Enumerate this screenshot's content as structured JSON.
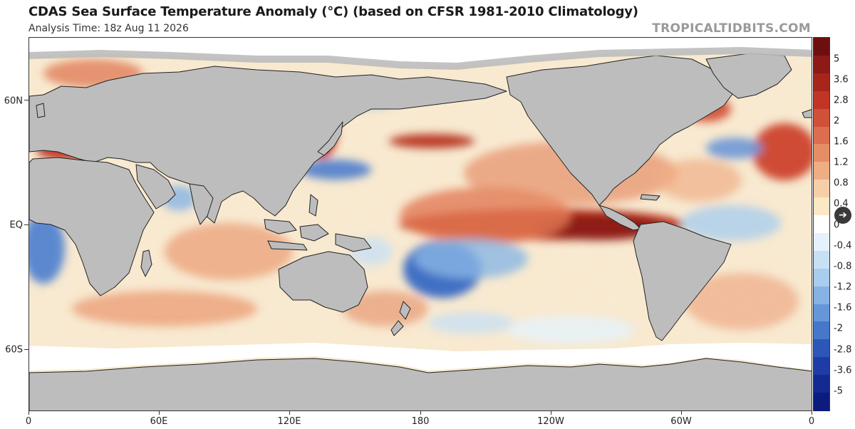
{
  "header": {
    "title": "CDAS Sea Surface Temperature Anomaly (°C) (based on CFSR 1981-2010 Climatology)",
    "analysis_time": "Analysis Time: 18z Aug 11 2026",
    "brand": "TROPICALTIDBITS.COM"
  },
  "map": {
    "lat_labels": [
      "60N",
      "EQ",
      "60S"
    ],
    "lon_labels": [
      "0",
      "60E",
      "120E",
      "180",
      "120W",
      "60W",
      "0"
    ],
    "land_color": "#bdbdbd",
    "ice_color": "#ffffff",
    "ocean_neutral": "#fbf3e4"
  },
  "colorbar": {
    "labels": [
      "5",
      "3.6",
      "2.8",
      "2",
      "1.6",
      "1.2",
      "0.8",
      "0.4",
      "0",
      "-0.4",
      "-0.8",
      "-1.2",
      "-1.6",
      "-2",
      "-2.8",
      "-3.6",
      "-5"
    ],
    "colors": [
      "#6e0f0f",
      "#8c1a16",
      "#a8251c",
      "#c03525",
      "#d1503a",
      "#dc6d4f",
      "#e68d66",
      "#efad84",
      "#f6cfa8",
      "#fbe8c4",
      "#ffffff",
      "#e6f2fb",
      "#c8e0f4",
      "#a9cdee",
      "#86b3e4",
      "#6596d8",
      "#4677ca",
      "#2c56b8",
      "#1d3ca6",
      "#122a92",
      "#0b1c7e"
    ]
  },
  "nav": {
    "icon": "arrow-right-icon",
    "glyph": "➔"
  }
}
